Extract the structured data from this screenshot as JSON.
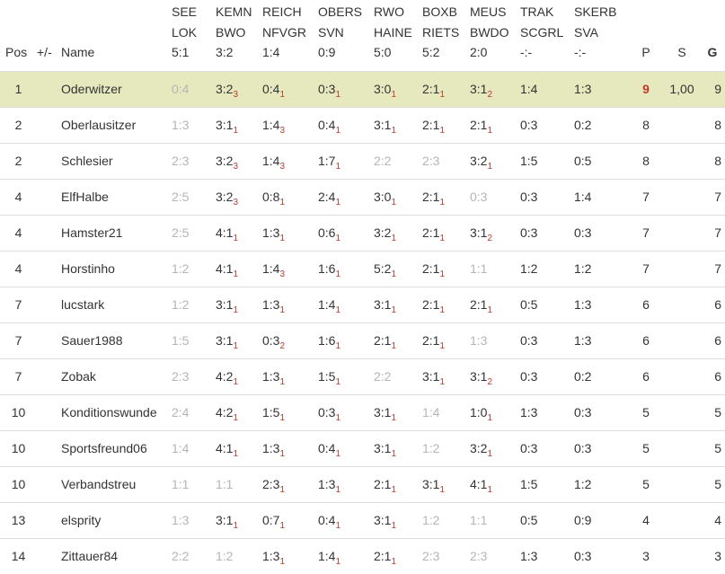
{
  "header": {
    "pos": "Pos",
    "diff": "+/-",
    "name": "Name",
    "p": "P",
    "s": "S",
    "g": "G",
    "matches": [
      {
        "home": "SEE",
        "away": "LOK",
        "result": "5:1"
      },
      {
        "home": "KEMN",
        "away": "BWO",
        "result": "3:2"
      },
      {
        "home": "REICH",
        "away": "NFVGR",
        "result": "1:4"
      },
      {
        "home": "OBERS",
        "away": "SVN",
        "result": "0:9"
      },
      {
        "home": "RWO",
        "away": "HAINE",
        "result": "5:0"
      },
      {
        "home": "BOXB",
        "away": "RIETS",
        "result": "5:2"
      },
      {
        "home": "MEUS",
        "away": "BWDO",
        "result": "2:0"
      },
      {
        "home": "TRAK",
        "away": "SCGRL",
        "result": "-:-"
      },
      {
        "home": "SKERB",
        "away": "SVA",
        "result": "-:-"
      }
    ]
  },
  "rows": [
    {
      "pos": "1",
      "diff": "",
      "name": "Oderwitzer",
      "highlight": true,
      "p": "9",
      "p_best": true,
      "s": "1,00",
      "g": "9",
      "tips": [
        {
          "t": "0:4",
          "pts": "",
          "m": true
        },
        {
          "t": "3:2",
          "pts": "3"
        },
        {
          "t": "0:4",
          "pts": "1"
        },
        {
          "t": "0:3",
          "pts": "1"
        },
        {
          "t": "3:0",
          "pts": "1"
        },
        {
          "t": "2:1",
          "pts": "1"
        },
        {
          "t": "3:1",
          "pts": "2"
        },
        {
          "t": "1:4",
          "pts": ""
        },
        {
          "t": "1:3",
          "pts": ""
        }
      ]
    },
    {
      "pos": "2",
      "diff": "",
      "name": "Oberlausitzer",
      "p": "8",
      "s": "",
      "g": "8",
      "tips": [
        {
          "t": "1:3",
          "pts": "",
          "m": true
        },
        {
          "t": "3:1",
          "pts": "1"
        },
        {
          "t": "1:4",
          "pts": "3"
        },
        {
          "t": "0:4",
          "pts": "1"
        },
        {
          "t": "3:1",
          "pts": "1"
        },
        {
          "t": "2:1",
          "pts": "1"
        },
        {
          "t": "2:1",
          "pts": "1"
        },
        {
          "t": "0:3",
          "pts": ""
        },
        {
          "t": "0:2",
          "pts": ""
        }
      ]
    },
    {
      "pos": "2",
      "diff": "",
      "name": "Schlesier",
      "p": "8",
      "s": "",
      "g": "8",
      "tips": [
        {
          "t": "2:3",
          "pts": "",
          "m": true
        },
        {
          "t": "3:2",
          "pts": "3"
        },
        {
          "t": "1:4",
          "pts": "3"
        },
        {
          "t": "1:7",
          "pts": "1"
        },
        {
          "t": "2:2",
          "pts": "",
          "m": true
        },
        {
          "t": "2:3",
          "pts": "",
          "m": true
        },
        {
          "t": "3:2",
          "pts": "1"
        },
        {
          "t": "1:5",
          "pts": ""
        },
        {
          "t": "0:5",
          "pts": ""
        }
      ]
    },
    {
      "pos": "4",
      "diff": "",
      "name": "ElfHalbe",
      "p": "7",
      "s": "",
      "g": "7",
      "tips": [
        {
          "t": "2:5",
          "pts": "",
          "m": true
        },
        {
          "t": "3:2",
          "pts": "3"
        },
        {
          "t": "0:8",
          "pts": "1"
        },
        {
          "t": "2:4",
          "pts": "1"
        },
        {
          "t": "3:0",
          "pts": "1"
        },
        {
          "t": "2:1",
          "pts": "1"
        },
        {
          "t": "0:3",
          "pts": "",
          "m": true
        },
        {
          "t": "0:3",
          "pts": ""
        },
        {
          "t": "1:4",
          "pts": ""
        }
      ]
    },
    {
      "pos": "4",
      "diff": "",
      "name": "Hamster21",
      "p": "7",
      "s": "",
      "g": "7",
      "tips": [
        {
          "t": "2:5",
          "pts": "",
          "m": true
        },
        {
          "t": "4:1",
          "pts": "1"
        },
        {
          "t": "1:3",
          "pts": "1"
        },
        {
          "t": "0:6",
          "pts": "1"
        },
        {
          "t": "3:2",
          "pts": "1"
        },
        {
          "t": "2:1",
          "pts": "1"
        },
        {
          "t": "3:1",
          "pts": "2"
        },
        {
          "t": "0:3",
          "pts": ""
        },
        {
          "t": "0:3",
          "pts": ""
        }
      ]
    },
    {
      "pos": "4",
      "diff": "",
      "name": "Horstinho",
      "p": "7",
      "s": "",
      "g": "7",
      "tips": [
        {
          "t": "1:2",
          "pts": "",
          "m": true
        },
        {
          "t": "4:1",
          "pts": "1"
        },
        {
          "t": "1:4",
          "pts": "3"
        },
        {
          "t": "1:6",
          "pts": "1"
        },
        {
          "t": "5:2",
          "pts": "1"
        },
        {
          "t": "2:1",
          "pts": "1"
        },
        {
          "t": "1:1",
          "pts": "",
          "m": true
        },
        {
          "t": "1:2",
          "pts": ""
        },
        {
          "t": "1:2",
          "pts": ""
        }
      ]
    },
    {
      "pos": "7",
      "diff": "",
      "name": "lucstark",
      "p": "6",
      "s": "",
      "g": "6",
      "tips": [
        {
          "t": "1:2",
          "pts": "",
          "m": true
        },
        {
          "t": "3:1",
          "pts": "1"
        },
        {
          "t": "1:3",
          "pts": "1"
        },
        {
          "t": "1:4",
          "pts": "1"
        },
        {
          "t": "3:1",
          "pts": "1"
        },
        {
          "t": "2:1",
          "pts": "1"
        },
        {
          "t": "2:1",
          "pts": "1"
        },
        {
          "t": "0:5",
          "pts": ""
        },
        {
          "t": "1:3",
          "pts": ""
        }
      ]
    },
    {
      "pos": "7",
      "diff": "",
      "name": "Sauer1988",
      "p": "6",
      "s": "",
      "g": "6",
      "tips": [
        {
          "t": "1:5",
          "pts": "",
          "m": true
        },
        {
          "t": "3:1",
          "pts": "1"
        },
        {
          "t": "0:3",
          "pts": "2"
        },
        {
          "t": "1:6",
          "pts": "1"
        },
        {
          "t": "2:1",
          "pts": "1"
        },
        {
          "t": "2:1",
          "pts": "1"
        },
        {
          "t": "1:3",
          "pts": "",
          "m": true
        },
        {
          "t": "0:3",
          "pts": ""
        },
        {
          "t": "1:3",
          "pts": ""
        }
      ]
    },
    {
      "pos": "7",
      "diff": "",
      "name": "Zobak",
      "p": "6",
      "s": "",
      "g": "6",
      "tips": [
        {
          "t": "2:3",
          "pts": "",
          "m": true
        },
        {
          "t": "4:2",
          "pts": "1"
        },
        {
          "t": "1:3",
          "pts": "1"
        },
        {
          "t": "1:5",
          "pts": "1"
        },
        {
          "t": "2:2",
          "pts": "",
          "m": true
        },
        {
          "t": "3:1",
          "pts": "1"
        },
        {
          "t": "3:1",
          "pts": "2"
        },
        {
          "t": "0:3",
          "pts": ""
        },
        {
          "t": "0:2",
          "pts": ""
        }
      ]
    },
    {
      "pos": "10",
      "diff": "",
      "name": "Konditionswunde",
      "p": "5",
      "s": "",
      "g": "5",
      "tips": [
        {
          "t": "2:4",
          "pts": "",
          "m": true
        },
        {
          "t": "4:2",
          "pts": "1"
        },
        {
          "t": "1:5",
          "pts": "1"
        },
        {
          "t": "0:3",
          "pts": "1"
        },
        {
          "t": "3:1",
          "pts": "1"
        },
        {
          "t": "1:4",
          "pts": "",
          "m": true
        },
        {
          "t": "1:0",
          "pts": "1"
        },
        {
          "t": "1:3",
          "pts": ""
        },
        {
          "t": "0:3",
          "pts": ""
        }
      ]
    },
    {
      "pos": "10",
      "diff": "",
      "name": "Sportsfreund06",
      "p": "5",
      "s": "",
      "g": "5",
      "tips": [
        {
          "t": "1:4",
          "pts": "",
          "m": true
        },
        {
          "t": "4:1",
          "pts": "1"
        },
        {
          "t": "1:3",
          "pts": "1"
        },
        {
          "t": "0:4",
          "pts": "1"
        },
        {
          "t": "3:1",
          "pts": "1"
        },
        {
          "t": "1:2",
          "pts": "",
          "m": true
        },
        {
          "t": "3:2",
          "pts": "1"
        },
        {
          "t": "0:3",
          "pts": ""
        },
        {
          "t": "0:3",
          "pts": ""
        }
      ]
    },
    {
      "pos": "10",
      "diff": "",
      "name": "Verbandstreu",
      "p": "5",
      "s": "",
      "g": "5",
      "tips": [
        {
          "t": "1:1",
          "pts": "",
          "m": true
        },
        {
          "t": "1:1",
          "pts": "",
          "m": true
        },
        {
          "t": "2:3",
          "pts": "1"
        },
        {
          "t": "1:3",
          "pts": "1"
        },
        {
          "t": "2:1",
          "pts": "1"
        },
        {
          "t": "3:1",
          "pts": "1"
        },
        {
          "t": "4:1",
          "pts": "1"
        },
        {
          "t": "1:5",
          "pts": ""
        },
        {
          "t": "1:2",
          "pts": ""
        }
      ]
    },
    {
      "pos": "13",
      "diff": "",
      "name": "elsprity",
      "p": "4",
      "s": "",
      "g": "4",
      "tips": [
        {
          "t": "1:3",
          "pts": "",
          "m": true
        },
        {
          "t": "3:1",
          "pts": "1"
        },
        {
          "t": "0:7",
          "pts": "1"
        },
        {
          "t": "0:4",
          "pts": "1"
        },
        {
          "t": "3:1",
          "pts": "1"
        },
        {
          "t": "1:2",
          "pts": "",
          "m": true
        },
        {
          "t": "1:1",
          "pts": "",
          "m": true
        },
        {
          "t": "0:5",
          "pts": ""
        },
        {
          "t": "0:9",
          "pts": ""
        }
      ]
    },
    {
      "pos": "14",
      "diff": "",
      "name": "Zittauer84",
      "p": "3",
      "s": "",
      "g": "3",
      "tips": [
        {
          "t": "2:2",
          "pts": "",
          "m": true
        },
        {
          "t": "1:2",
          "pts": "",
          "m": true
        },
        {
          "t": "1:3",
          "pts": "1"
        },
        {
          "t": "1:4",
          "pts": "1"
        },
        {
          "t": "2:1",
          "pts": "1"
        },
        {
          "t": "2:3",
          "pts": "",
          "m": true
        },
        {
          "t": "2:3",
          "pts": "",
          "m": true
        },
        {
          "t": "1:3",
          "pts": ""
        },
        {
          "t": "0:3",
          "pts": ""
        }
      ]
    }
  ]
}
